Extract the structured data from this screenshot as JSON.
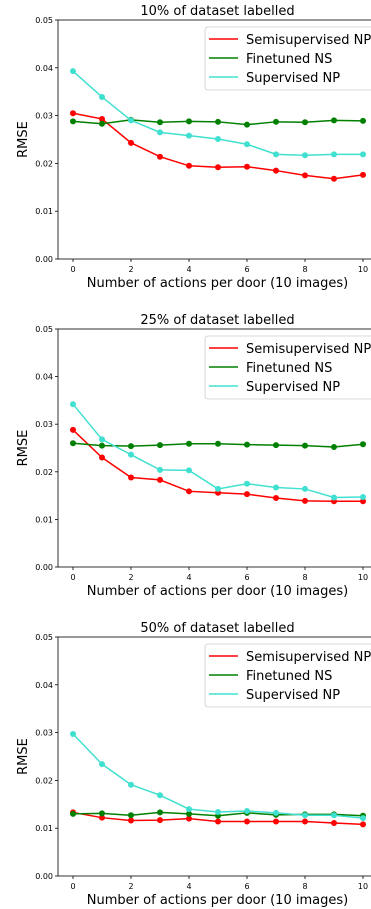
{
  "chart_data": [
    {
      "type": "line",
      "title": "10% of dataset labelled",
      "xlabel": "Number of actions per door (10 images)",
      "ylabel": "RMSE",
      "xlim": [
        0,
        10
      ],
      "ylim": [
        0,
        0.05
      ],
      "x_ticks": [
        "0",
        "2",
        "4",
        "6",
        "8",
        "10"
      ],
      "y_ticks": [
        "0.00",
        "0.01",
        "0.02",
        "0.03",
        "0.04",
        "0.05"
      ],
      "x": [
        0,
        1,
        2,
        3,
        4,
        5,
        6,
        7,
        8,
        9,
        10
      ],
      "legend_position": "top-right",
      "series": [
        {
          "name": "Semisupervised NP",
          "color": "#ff0000",
          "values": [
            0.0305,
            0.0293,
            0.0243,
            0.0214,
            0.0195,
            0.0192,
            0.0193,
            0.0185,
            0.0175,
            0.0168,
            0.0176
          ]
        },
        {
          "name": "Finetuned NS",
          "color": "#008000",
          "values": [
            0.0288,
            0.0283,
            0.0291,
            0.0286,
            0.0288,
            0.0287,
            0.0281,
            0.0287,
            0.0286,
            0.029,
            0.0289
          ]
        },
        {
          "name": "Supervised NP",
          "color": "#40e0d0",
          "values": [
            0.0393,
            0.0339,
            0.029,
            0.0265,
            0.0258,
            0.0251,
            0.024,
            0.0219,
            0.0217,
            0.0219,
            0.0219
          ]
        }
      ]
    },
    {
      "type": "line",
      "title": "25% of dataset labelled",
      "xlabel": "Number of actions per door (10 images)",
      "ylabel": "RMSE",
      "xlim": [
        0,
        10
      ],
      "ylim": [
        0,
        0.05
      ],
      "x_ticks": [
        "0",
        "2",
        "4",
        "6",
        "8",
        "10"
      ],
      "y_ticks": [
        "0.00",
        "0.01",
        "0.02",
        "0.03",
        "0.04",
        "0.05"
      ],
      "x": [
        0,
        1,
        2,
        3,
        4,
        5,
        6,
        7,
        8,
        9,
        10
      ],
      "legend_position": "top-right",
      "series": [
        {
          "name": "Semisupervised NP",
          "color": "#ff0000",
          "values": [
            0.0288,
            0.023,
            0.0188,
            0.0183,
            0.0159,
            0.0156,
            0.0153,
            0.0145,
            0.0139,
            0.0138,
            0.0138
          ]
        },
        {
          "name": "Finetuned NS",
          "color": "#008000",
          "values": [
            0.026,
            0.0255,
            0.0254,
            0.0256,
            0.0259,
            0.0259,
            0.0257,
            0.0256,
            0.0255,
            0.0252,
            0.0258
          ]
        },
        {
          "name": "Supervised NP",
          "color": "#40e0d0",
          "values": [
            0.0342,
            0.0268,
            0.0236,
            0.0204,
            0.0203,
            0.0164,
            0.0175,
            0.0167,
            0.0164,
            0.0146,
            0.0147
          ]
        }
      ]
    },
    {
      "type": "line",
      "title": "50% of dataset labelled",
      "xlabel": "Number of actions per door (10 images)",
      "ylabel": "RMSE",
      "xlim": [
        0,
        10
      ],
      "ylim": [
        0,
        0.05
      ],
      "x_ticks": [
        "0",
        "2",
        "4",
        "6",
        "8",
        "10"
      ],
      "y_ticks": [
        "0.00",
        "0.01",
        "0.02",
        "0.03",
        "0.04",
        "0.05"
      ],
      "x": [
        0,
        1,
        2,
        3,
        4,
        5,
        6,
        7,
        8,
        9,
        10
      ],
      "legend_position": "top-right",
      "series": [
        {
          "name": "Semisupervised NP",
          "color": "#ff0000",
          "values": [
            0.0133,
            0.0122,
            0.0116,
            0.0117,
            0.012,
            0.0114,
            0.0114,
            0.0114,
            0.0114,
            0.0111,
            0.0108
          ]
        },
        {
          "name": "Finetuned NS",
          "color": "#008000",
          "values": [
            0.013,
            0.0131,
            0.0127,
            0.0133,
            0.013,
            0.0126,
            0.0132,
            0.0128,
            0.0129,
            0.0129,
            0.0126
          ]
        },
        {
          "name": "Supervised NP",
          "color": "#40e0d0",
          "values": [
            0.0297,
            0.0234,
            0.0191,
            0.0169,
            0.014,
            0.0134,
            0.0136,
            0.0132,
            0.0127,
            0.0127,
            0.0121
          ]
        }
      ]
    }
  ]
}
